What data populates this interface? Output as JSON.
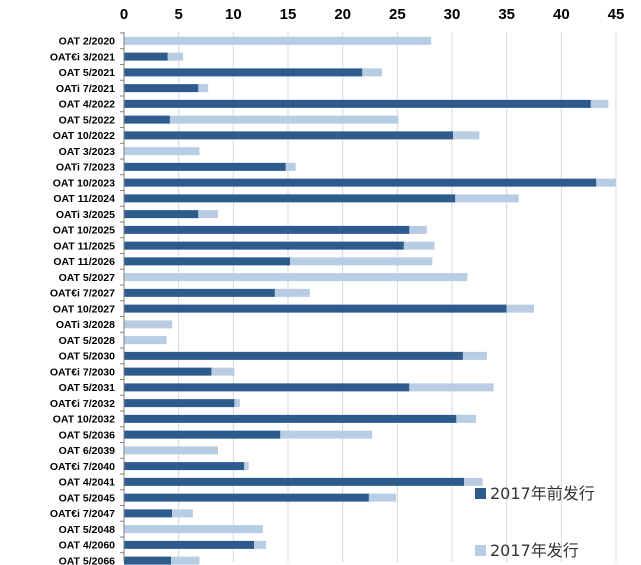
{
  "chart_data": {
    "type": "bar",
    "orientation": "horizontal",
    "stacked": true,
    "xlim": [
      0,
      45
    ],
    "xticks": [
      0,
      5,
      10,
      15,
      20,
      25,
      30,
      35,
      40,
      45
    ],
    "axis_position": "top",
    "legend_placement": "bottom-right",
    "categories": [
      "OAT 2/2020",
      "OAT€i 3/2021",
      "OAT 5/2021",
      "OATi 7/2021",
      "OAT 4/2022",
      "OAT 5/2022",
      "OAT 10/2022",
      "OAT 3/2023",
      "OATi 7/2023",
      "OAT 10/2023",
      "OAT 11/2024",
      "OATi 3/2025",
      "OAT 10/2025",
      "OAT 11/2025",
      "OAT 11/2026",
      "OAT 5/2027",
      "OAT€i 7/2027",
      "OAT 10/2027",
      "OATi 3/2028",
      "OAT 5/2028",
      "OAT 5/2030",
      "OAT€i 7/2030",
      "OAT 5/2031",
      "OAT€i 7/2032",
      "OAT 10/2032",
      "OAT 5/2036",
      "OAT 6/2039",
      "OAT€i 7/2040",
      "OAT 4/2041",
      "OAT 5/2045",
      "OAT€i 7/2047",
      "OAT 5/2048",
      "OAT 4/2060",
      "OAT 5/2066"
    ],
    "series": [
      {
        "name": "2017年前发行",
        "color": "#2e5b8e",
        "values": [
          0,
          4.0,
          21.8,
          6.8,
          42.7,
          4.2,
          30.1,
          0,
          14.8,
          43.2,
          30.3,
          6.8,
          26.1,
          25.6,
          15.2,
          0,
          13.8,
          35.0,
          0,
          0,
          31.0,
          8.0,
          26.1,
          10.1,
          30.4,
          14.3,
          0,
          11.0,
          31.1,
          22.4,
          4.4,
          0,
          11.9,
          4.3
        ]
      },
      {
        "name": "2017年发行",
        "color": "#b8cce4",
        "values": [
          28.1,
          1.4,
          1.8,
          0.9,
          1.6,
          20.9,
          2.4,
          6.9,
          0.9,
          1.8,
          5.8,
          1.8,
          1.6,
          2.8,
          13.0,
          31.4,
          3.2,
          2.5,
          4.4,
          3.9,
          2.2,
          2.1,
          7.7,
          0.5,
          1.8,
          8.4,
          8.6,
          0.4,
          1.7,
          2.5,
          1.9,
          12.7,
          1.1,
          2.6
        ]
      }
    ]
  }
}
